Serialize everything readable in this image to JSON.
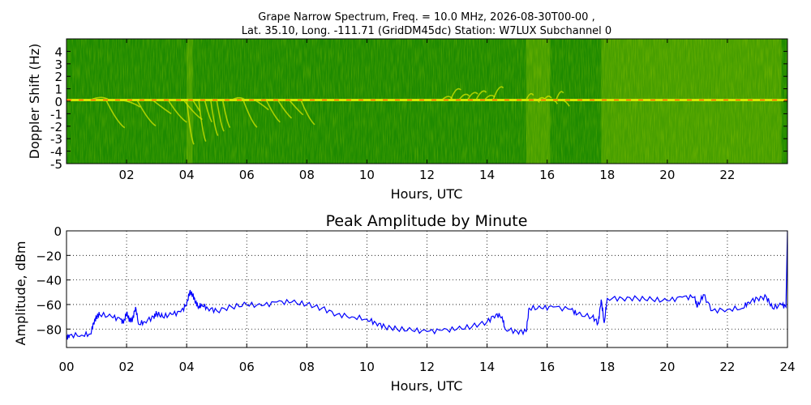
{
  "chart_data": [
    {
      "type": "heatmap",
      "title_line1": "Grape Narrow Spectrum, Freq. = 10.0 MHz, 2026-08-30T00-00 ,",
      "title_line2": "Lat.  35.10, Long. -111.71 (GridDM45dc) Station: W7LUX Subchannel 0",
      "xlabel": "Hours, UTC",
      "ylabel": "Doppler Shift (Hz)",
      "xlim": [
        0,
        24
      ],
      "ylim": [
        -5,
        5
      ],
      "xticks": [
        "02",
        "04",
        "06",
        "08",
        "10",
        "12",
        "14",
        "16",
        "18",
        "20",
        "22"
      ],
      "xtick_values": [
        2,
        4,
        6,
        8,
        10,
        12,
        14,
        16,
        18,
        20,
        22
      ],
      "yticks": [
        "4",
        "3",
        "2",
        "1",
        "0",
        "-1",
        "-2",
        "-3",
        "-4",
        "-5"
      ],
      "ytick_values": [
        4,
        3,
        2,
        1,
        0,
        -1,
        -2,
        -3,
        -4,
        -5
      ],
      "colors": {
        "background": "#1e8a00",
        "mid": "#d6e600",
        "peak": "#ff4000"
      },
      "carrier_hz": 0.1,
      "features": [
        {
          "hours": [
            0.8,
            3.9
          ],
          "doppler": [
            0.5,
            -2.0
          ],
          "note": "spread below carrier"
        },
        {
          "hours": [
            4.0,
            5.2
          ],
          "doppler": [
            0.5,
            -3.5
          ],
          "note": "strong descending traces"
        },
        {
          "hours": [
            5.5,
            7.8
          ],
          "doppler": [
            1.3,
            -2.3
          ],
          "note": "arc"
        },
        {
          "hours": [
            12.5,
            14.2
          ],
          "doppler": [
            2.1,
            0.3
          ],
          "note": "rising trace"
        },
        {
          "hours": [
            15.3,
            16.5
          ],
          "doppler": [
            1.8,
            -0.3
          ],
          "note": "rising trace"
        }
      ],
      "bands": [
        {
          "hours": [
            4.0,
            4.2
          ]
        },
        {
          "hours": [
            15.3,
            16.1
          ]
        },
        {
          "hours": [
            17.8,
            23.8
          ]
        }
      ]
    },
    {
      "type": "line",
      "title": "Peak Amplitude by Minute",
      "xlabel": "Hours, UTC",
      "ylabel": "Amplitude, dBm",
      "xlim": [
        0,
        24
      ],
      "ylim": [
        -95,
        0
      ],
      "grid": true,
      "xticks": [
        "00",
        "02",
        "04",
        "06",
        "08",
        "10",
        "12",
        "14",
        "16",
        "18",
        "20",
        "22",
        "24"
      ],
      "xtick_values": [
        0,
        2,
        4,
        6,
        8,
        10,
        12,
        14,
        16,
        18,
        20,
        22,
        24
      ],
      "yticks": [
        "0",
        "−20",
        "−40",
        "−60",
        "−80"
      ],
      "ytick_values": [
        0,
        -20,
        -40,
        -60,
        -80
      ],
      "color": "#0000ff",
      "x": [
        0.0,
        0.1,
        0.5,
        0.8,
        0.9,
        1.0,
        1.1,
        1.5,
        1.8,
        1.9,
        2.0,
        2.1,
        2.2,
        2.3,
        2.4,
        2.6,
        2.9,
        3.0,
        3.2,
        3.5,
        3.8,
        4.0,
        4.1,
        4.2,
        4.3,
        4.4,
        4.5,
        4.7,
        5.0,
        5.5,
        6.0,
        6.5,
        7.0,
        7.5,
        8.0,
        8.5,
        9.0,
        9.5,
        10.0,
        10.3,
        10.6,
        11.0,
        11.5,
        12.0,
        12.5,
        13.0,
        13.5,
        14.0,
        14.3,
        14.5,
        14.6,
        15.0,
        15.3,
        15.4,
        15.8,
        16.2,
        16.8,
        17.0,
        17.5,
        17.7,
        17.8,
        17.9,
        18.0,
        18.5,
        19.0,
        19.5,
        20.0,
        20.5,
        20.9,
        21.0,
        21.2,
        21.5,
        22.0,
        22.5,
        22.7,
        23.0,
        23.3,
        23.5,
        23.8,
        23.95,
        24.0
      ],
      "y": [
        -87,
        -85,
        -85,
        -84,
        -75,
        -70,
        -68,
        -70,
        -72,
        -75,
        -67,
        -73,
        -72,
        -62,
        -76,
        -74,
        -70,
        -67,
        -70,
        -68,
        -66,
        -60,
        -50,
        -52,
        -58,
        -62,
        -60,
        -63,
        -65,
        -62,
        -60,
        -61,
        -58,
        -58,
        -60,
        -63,
        -68,
        -70,
        -72,
        -75,
        -78,
        -80,
        -81,
        -82,
        -81,
        -80,
        -78,
        -74,
        -68,
        -70,
        -80,
        -82,
        -82,
        -63,
        -63,
        -62,
        -64,
        -68,
        -70,
        -75,
        -56,
        -75,
        -55,
        -55,
        -55,
        -56,
        -57,
        -54,
        -54,
        -62,
        -52,
        -65,
        -64,
        -63,
        -58,
        -55,
        -54,
        -63,
        -60,
        -62,
        0
      ]
    }
  ]
}
